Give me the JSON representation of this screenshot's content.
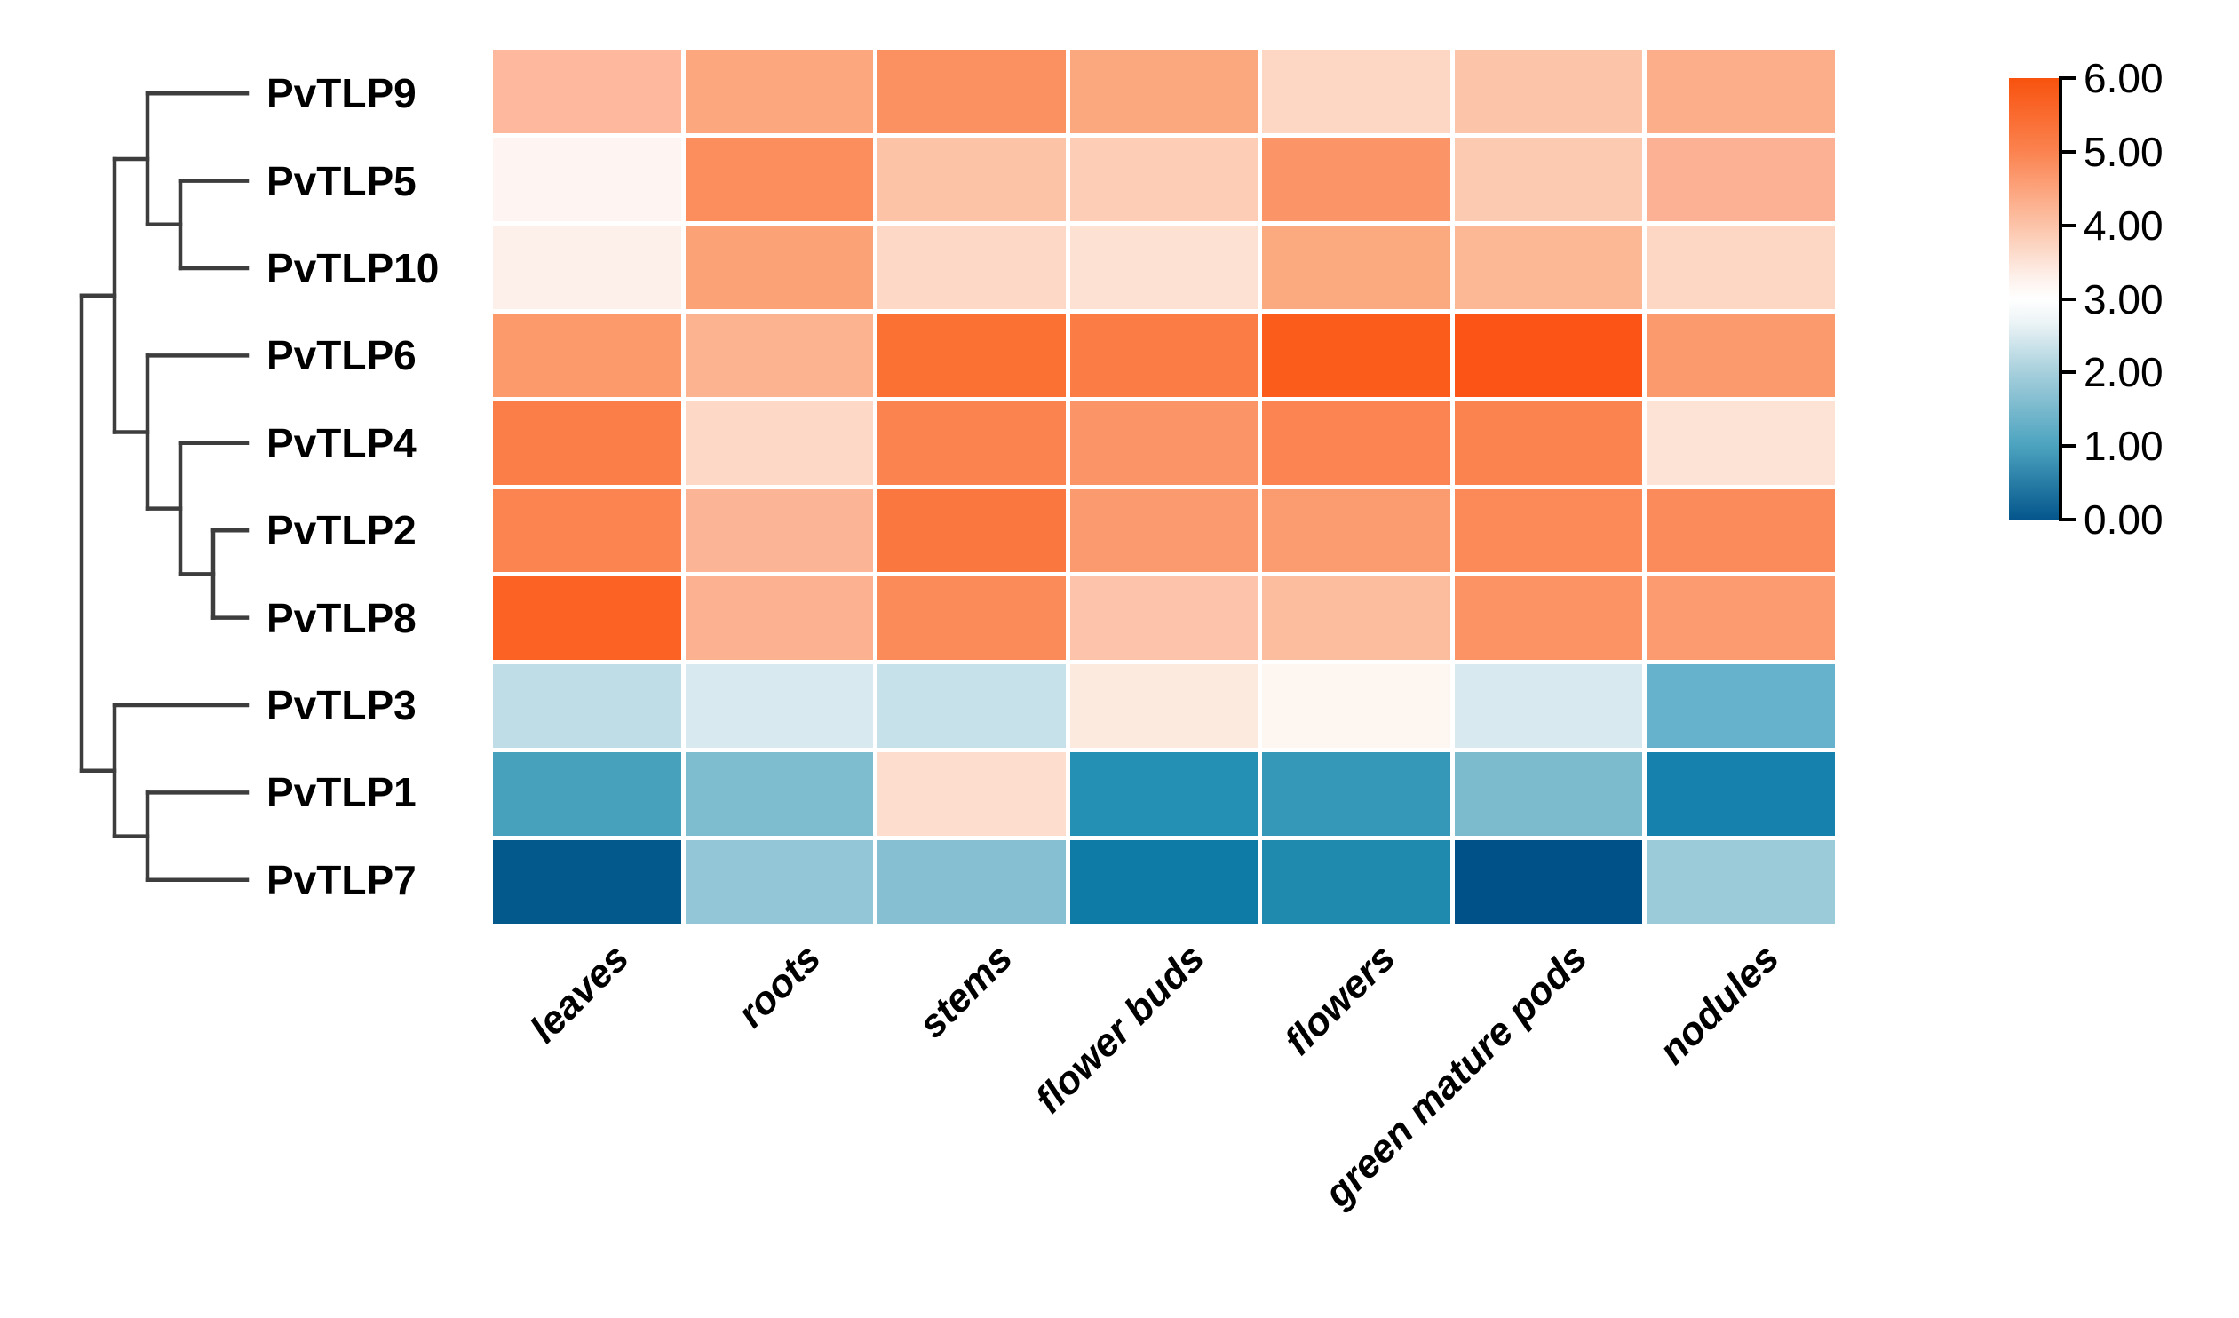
{
  "figure": {
    "description": "Clustered heatmap of PvTLP gene expression across common bean tissues with row dendrogram and vertical color scale",
    "background_color": "#ffffff",
    "dendrogram_line_color": "#3d3d3d",
    "grid_line_color": "#ffffff",
    "text_color": "#000000"
  },
  "colorbar": {
    "position": "right",
    "ticks": [
      "6.00",
      "5.00",
      "4.00",
      "3.00",
      "2.00",
      "1.00",
      "0.00"
    ],
    "gradient_stops": [
      {
        "value": 6,
        "color": "#f8520e"
      },
      {
        "value": 5,
        "color": "#fb8350"
      },
      {
        "value": 4,
        "color": "#fcc3a8"
      },
      {
        "value": 3.3,
        "color": "#fdf0ea"
      },
      {
        "value": 3,
        "color": "#ffffff"
      },
      {
        "value": 2.7,
        "color": "#eef5f7"
      },
      {
        "value": 2,
        "color": "#a6cfdc"
      },
      {
        "value": 1,
        "color": "#4ba3bf"
      },
      {
        "value": 0,
        "color": "#04568c"
      }
    ]
  },
  "chart_data": {
    "type": "heatmap",
    "title": "",
    "rows": [
      "PvTLP9",
      "PvTLP5",
      "PvTLP10",
      "PvTLP6",
      "PvTLP4",
      "PvTLP2",
      "PvTLP8",
      "PvTLP3",
      "PvTLP1",
      "PvTLP7"
    ],
    "columns": [
      "leaves",
      "roots",
      "stems",
      "flower buds",
      "flowers",
      "green mature pods",
      "nodules"
    ],
    "values": [
      [
        4.15,
        4.45,
        4.8,
        4.45,
        3.75,
        4.0,
        4.35
      ],
      [
        3.1,
        4.85,
        4.05,
        3.95,
        4.75,
        3.95,
        4.25
      ],
      [
        3.25,
        4.5,
        3.75,
        3.6,
        4.4,
        4.2,
        3.75
      ],
      [
        4.6,
        4.25,
        5.25,
        5.1,
        5.5,
        5.6,
        4.65
      ],
      [
        5.1,
        3.75,
        5.0,
        4.75,
        5.0,
        5.0,
        3.55
      ],
      [
        5.0,
        4.2,
        5.2,
        4.65,
        4.65,
        4.9,
        4.9
      ],
      [
        5.4,
        4.25,
        4.9,
        4.0,
        4.1,
        4.8,
        4.65
      ],
      [
        2.3,
        2.6,
        2.4,
        3.4,
        3.1,
        2.6,
        1.4
      ],
      [
        1.05,
        1.65,
        3.65,
        0.8,
        0.95,
        1.6,
        0.55
      ],
      [
        0.15,
        1.9,
        1.75,
        0.45,
        0.7,
        0.05,
        1.95
      ]
    ],
    "cell_colors": [
      [
        "#feb89e",
        "#fca77d",
        "#fb9061",
        "#fca87f",
        "#fdd6c4",
        "#fcc5aa",
        "#fcae8a"
      ],
      [
        "#fef5f2",
        "#fb8e5c",
        "#fcc3a7",
        "#fdcdb5",
        "#fb9466",
        "#fccab1",
        "#fcb195"
      ],
      [
        "#fdefe9",
        "#fba276",
        "#fdd8c6",
        "#fde2d4",
        "#fbaa80",
        "#fcb795",
        "#fdd6c4"
      ],
      [
        "#fc9a6c",
        "#fcb38f",
        "#fb7134",
        "#fb7c44",
        "#fb5b1b",
        "#fc5417",
        "#fb9b6d"
      ],
      [
        "#fb7e48",
        "#fdd8c6",
        "#fb8350",
        "#fb9466",
        "#fb8452",
        "#fb8350",
        "#fde3d6"
      ],
      [
        "#fb8451",
        "#fcb496",
        "#fb7740",
        "#fb9a6e",
        "#fb9c70",
        "#fb8a58",
        "#fb8b5a"
      ],
      [
        "#fb6224",
        "#fcb191",
        "#fb8b59",
        "#fdc3ab",
        "#fcbd9f",
        "#fb9365",
        "#fb9b6f"
      ],
      [
        "#bfdde6",
        "#d8eaf0",
        "#c6e1e9",
        "#fdeadf",
        "#fef6f1",
        "#d8e9f0",
        "#66b2cc"
      ],
      [
        "#47a1bd",
        "#7ebccf",
        "#fdddcd",
        "#2490b4",
        "#3598b9",
        "#7cbace",
        "#1581ac"
      ],
      [
        "#03598c",
        "#93c6d6",
        "#85bfd1",
        "#0e7aa6",
        "#2089ae",
        "#005187",
        "#9bcad9"
      ]
    ],
    "scale": {
      "min": 0,
      "max": 6,
      "tick_step": 1
    },
    "legend_position": "right",
    "grid": true,
    "dendrogram": {
      "orientation": "left",
      "tree": [
        [
          [
            "PvTLP9",
            [
              "PvTLP5",
              "PvTLP10"
            ]
          ],
          [
            "PvTLP6",
            [
              "PvTLP4",
              [
                "PvTLP2",
                "PvTLP8"
              ]
            ]
          ]
        ],
        [
          "PvTLP3",
          [
            "PvTLP1",
            "PvTLP7"
          ]
        ]
      ]
    }
  }
}
